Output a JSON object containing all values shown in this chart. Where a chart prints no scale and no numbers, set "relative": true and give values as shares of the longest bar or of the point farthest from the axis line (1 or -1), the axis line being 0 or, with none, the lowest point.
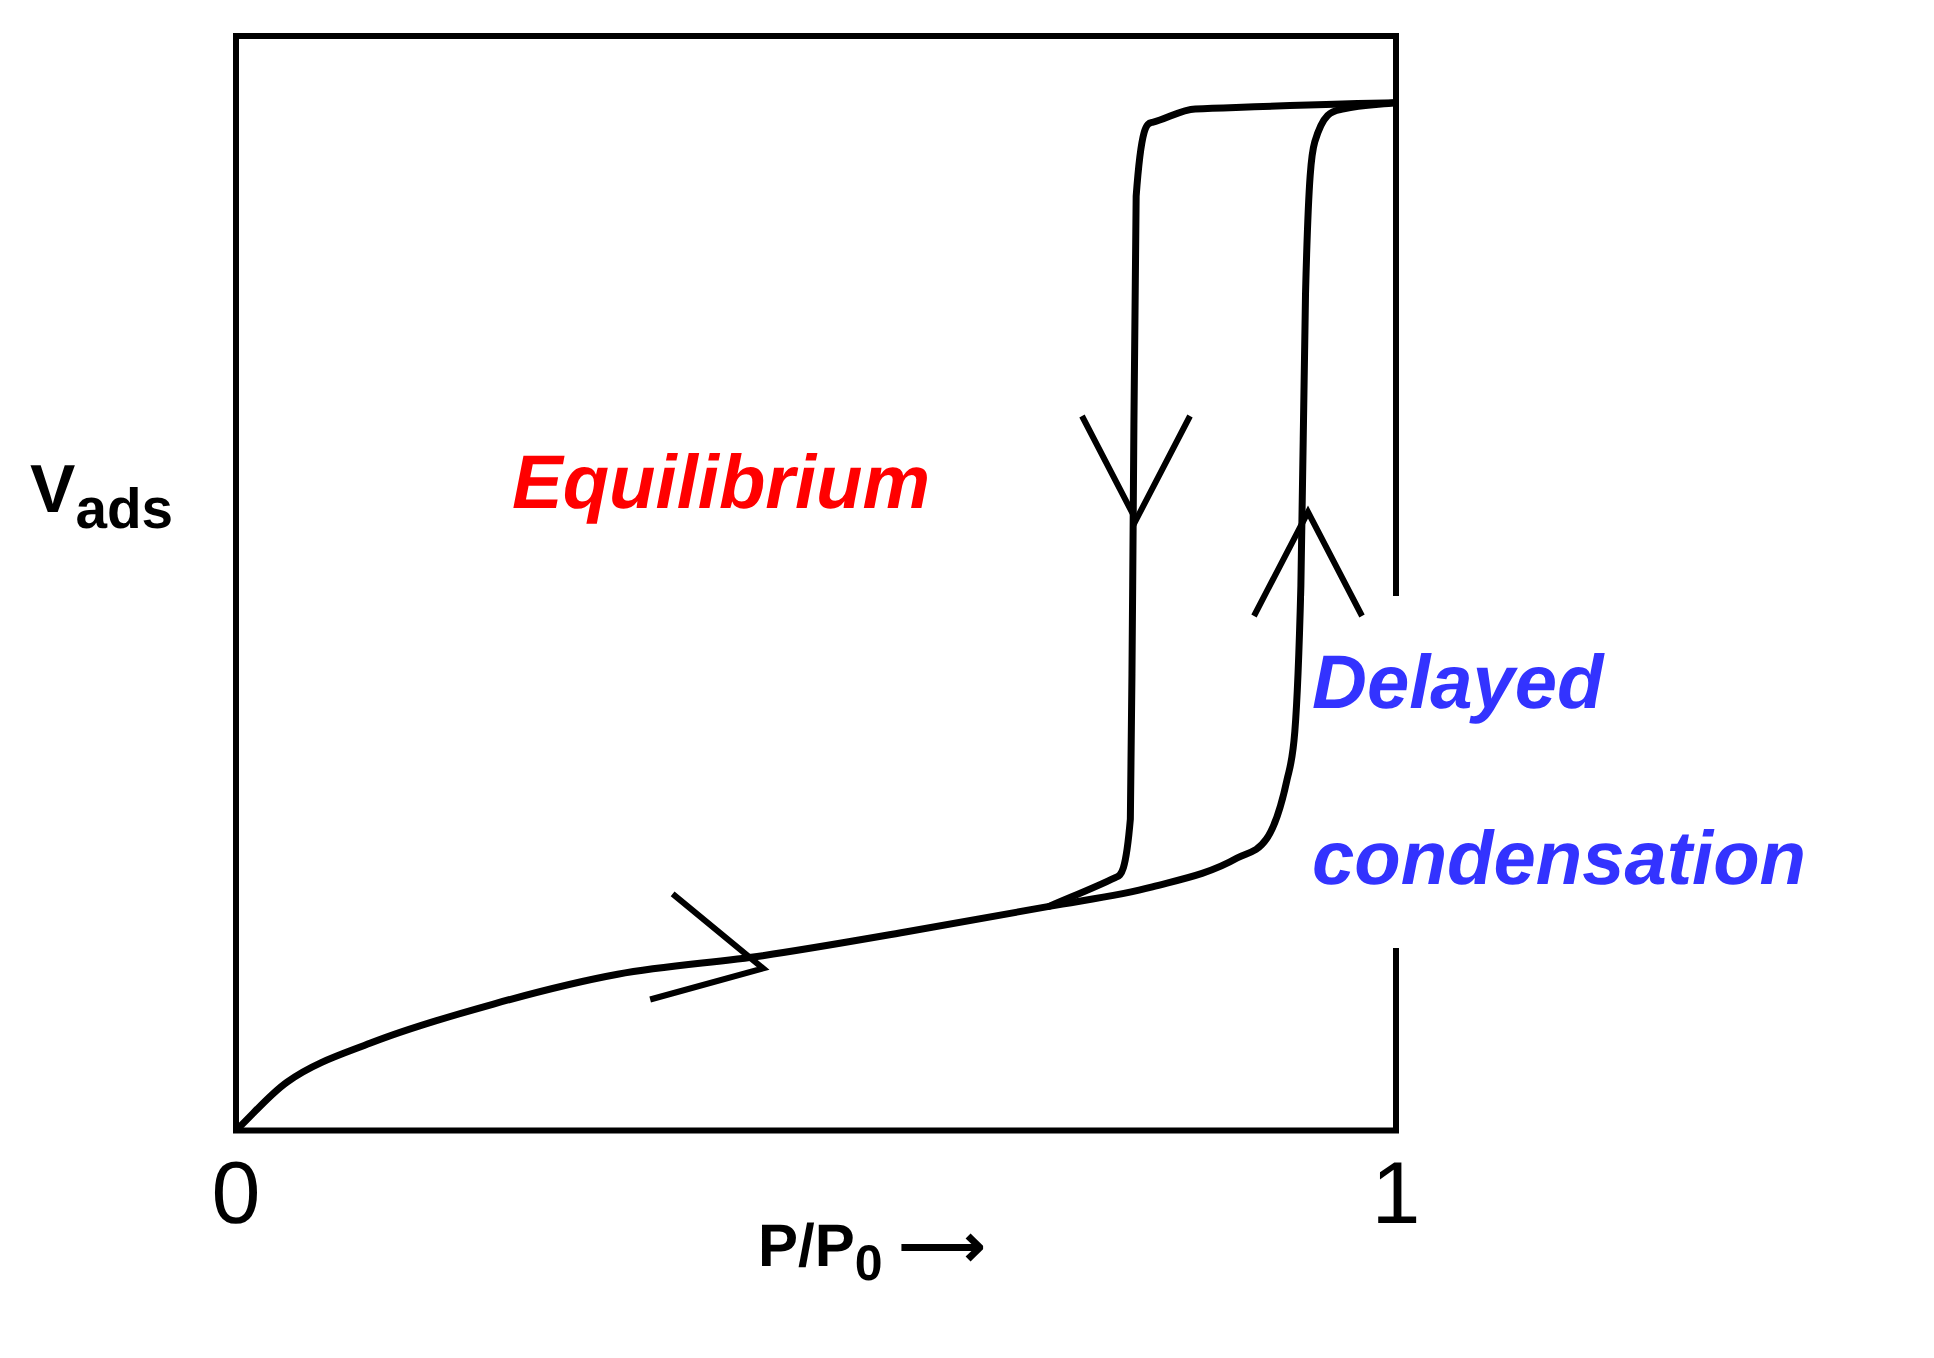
{
  "chart_data": {
    "type": "line",
    "xlabel": "P/P$_{0}$ ⟶",
    "ylabel": "V$_{ads}$",
    "relative": true,
    "xlim": [
      0,
      1
    ],
    "xticks": [
      0,
      1
    ],
    "tick_labels": "x",
    "grid": false,
    "marker": "none",
    "line_style": "solid",
    "series": [
      {
        "color": "#000000",
        "x": [
          0,
          0.044,
          0.116,
          0.222,
          0.329,
          0.454,
          0.577,
          0.701,
          0.79,
          0.863,
          0.906,
          0.918,
          0.922,
          0.93,
          0.955,
          1
        ],
        "values": [
          0,
          0.047,
          0.085,
          0.123,
          0.152,
          0.17,
          0.193,
          0.218,
          0.237,
          0.265,
          0.341,
          0.53,
          0.814,
          0.962,
          0.994,
          1
        ]
      },
      {
        "color": "#000000",
        "x": [
          1,
          0.827,
          0.79,
          0.776,
          0.773,
          0.771,
          0.758,
          0.701
        ],
        "values": [
          1,
          0.994,
          0.981,
          0.909,
          0.53,
          0.303,
          0.246,
          0.218
        ]
      }
    ],
    "annotations": [
      "Equilibrium",
      "Delayed condensation"
    ]
  }
}
